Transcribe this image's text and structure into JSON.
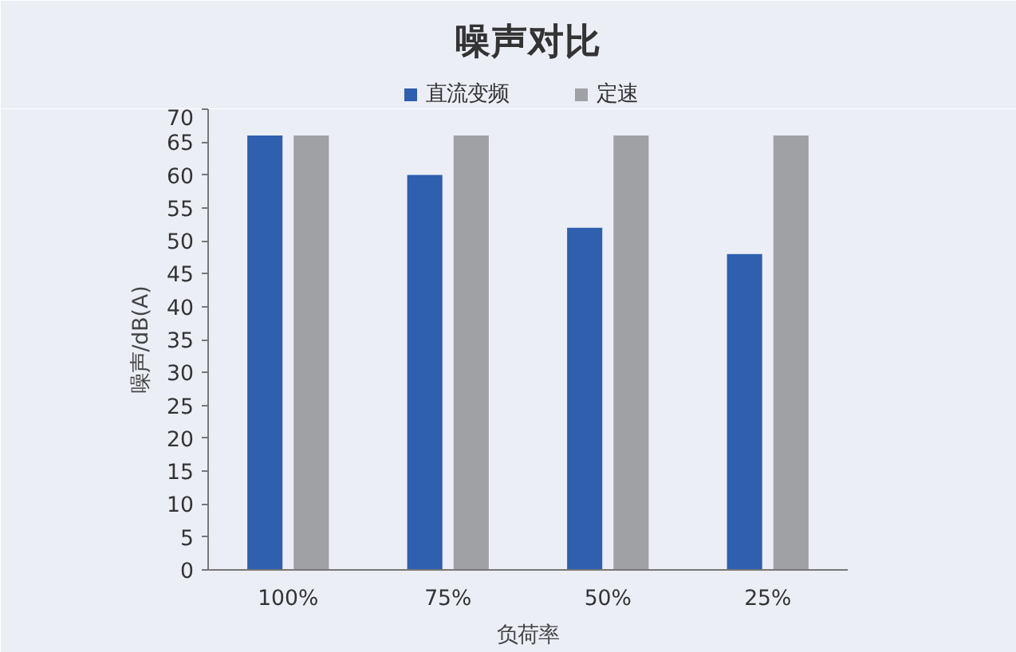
{
  "chart_data": {
    "type": "bar",
    "title": "噪声对比",
    "xlabel": "负荷率",
    "ylabel": "噪声/dB(A)",
    "categories": [
      "100%",
      "75%",
      "50%",
      "25%"
    ],
    "series": [
      {
        "name": "直流变频",
        "color": "#2f5faf",
        "values": [
          66,
          60,
          52,
          48
        ]
      },
      {
        "name": "定速",
        "color": "#a0a1a5",
        "values": [
          66,
          66,
          66,
          66
        ]
      }
    ],
    "ylim": [
      0,
      70
    ],
    "yticks": [
      0,
      5,
      10,
      15,
      20,
      25,
      30,
      35,
      40,
      45,
      50,
      55,
      60,
      65,
      70
    ],
    "grid": false,
    "legend": "top"
  }
}
